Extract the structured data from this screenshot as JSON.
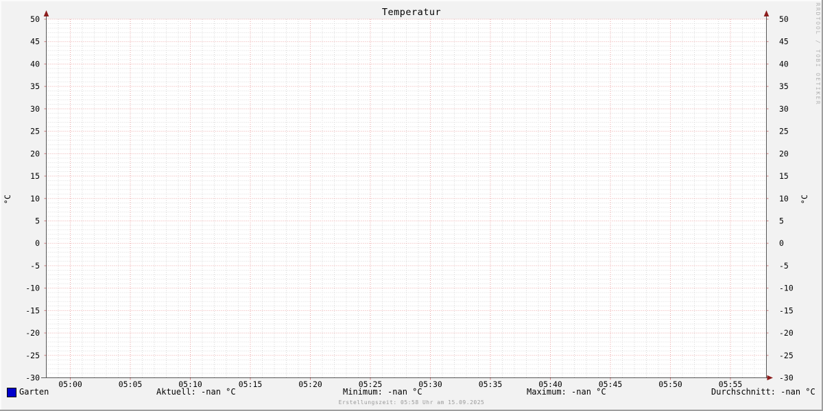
{
  "title": "Temperatur",
  "watermark": "RRDTOOL / TOBI OETIKER",
  "footer": {
    "text": "Erstellungszeit: 05:58 Uhr am 15.09.2025"
  },
  "y_axis": {
    "left_unit": "°C",
    "right_unit": "°C"
  },
  "legend": {
    "series_label": "Garten",
    "swatch_color": "#0000cc",
    "stats": [
      {
        "label": "Aktuell",
        "value": "-nan °C",
        "text": "Aktuell: -nan °C"
      },
      {
        "label": "Minimum",
        "value": "-nan °C",
        "text": "Minimum: -nan °C"
      },
      {
        "label": "Maximum",
        "value": "-nan °C",
        "text": "Maximum: -nan °C"
      },
      {
        "label": "Durchschnitt",
        "value": "-nan °C",
        "text": "Durchschnitt: -nan °C"
      }
    ]
  },
  "chart_data": {
    "type": "line",
    "title": "Temperatur",
    "ylabel": "°C",
    "ylim": [
      -30,
      50
    ],
    "y_major_step": 5,
    "y_minor_step": 1,
    "y_ticks": [
      50,
      45,
      40,
      35,
      30,
      25,
      20,
      15,
      10,
      5,
      0,
      -5,
      -10,
      -15,
      -20,
      -25,
      -30
    ],
    "x_ticks": [
      "05:00",
      "05:05",
      "05:10",
      "05:15",
      "05:20",
      "05:25",
      "05:30",
      "05:35",
      "05:40",
      "05:45",
      "05:50",
      "05:55"
    ],
    "x_total_minutes": 60,
    "x_first_tick_minute": 2,
    "x_major_step_minutes": 5,
    "x_minor_step_minutes": 1,
    "grid": true,
    "legend_position": "bottom",
    "series": [
      {
        "name": "Garten",
        "color": "#0000cc",
        "values": []
      }
    ],
    "stats": {
      "aktuell": "-nan",
      "minimum": "-nan",
      "maximum": "-nan",
      "durchschnitt": "-nan",
      "unit": "°C"
    },
    "colors": {
      "background": "#f2f2f2",
      "canvas": "#ffffff",
      "major_grid": "#eca2a2",
      "minor_grid": "#d8d8d8",
      "major_tick": "#cc7a7a",
      "axis": "#555555",
      "arrow": "#8b1c1c",
      "text": "#000000",
      "muted_text": "#999999"
    }
  }
}
